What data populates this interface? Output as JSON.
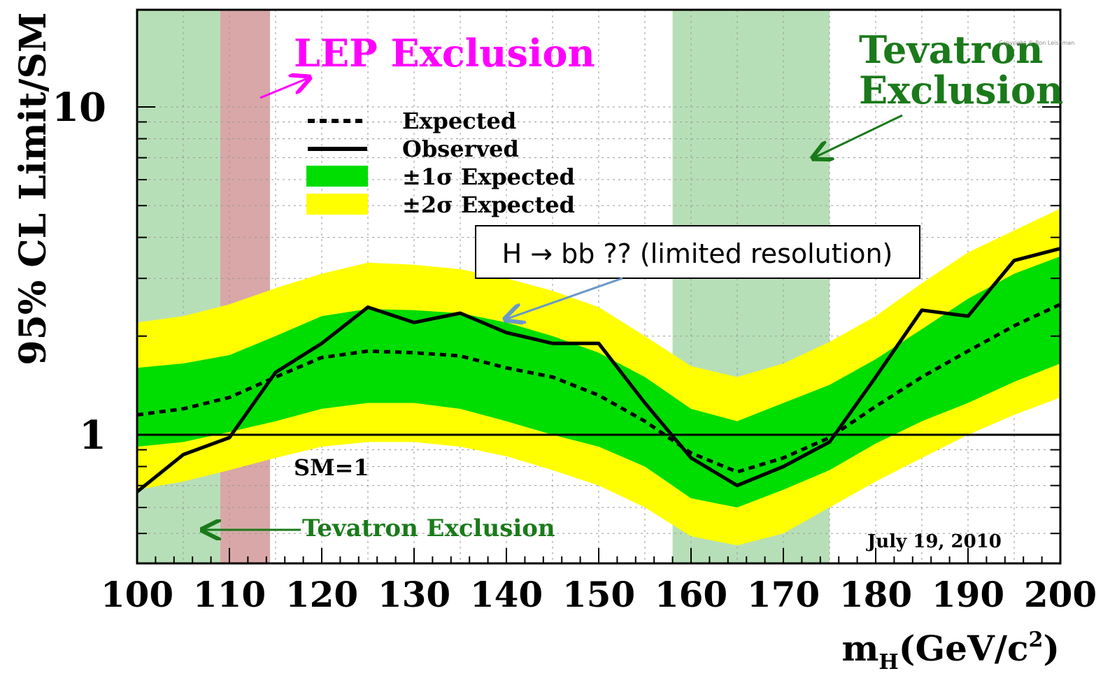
{
  "chart_data": {
    "type": "line",
    "xlabel": "m",
    "xlabel_sub": "H",
    "xlabel_unit": "(GeV/c",
    "xlabel_unit_sup": "2",
    "xlabel_unit_close": ")",
    "ylabel": "95% CL Limit/SM",
    "xlim": [
      100,
      200
    ],
    "ylim": [
      0.45,
      20
    ],
    "yscale": "log",
    "grid": true,
    "x_ticks": [
      100,
      110,
      120,
      130,
      140,
      150,
      160,
      170,
      180,
      190,
      200
    ],
    "y_ticks": [
      1,
      10
    ],
    "x": [
      100,
      105,
      110,
      115,
      120,
      125,
      130,
      135,
      140,
      145,
      150,
      155,
      160,
      165,
      170,
      175,
      180,
      185,
      190,
      195,
      200
    ],
    "series": [
      {
        "name": "Expected",
        "style": "dotted",
        "color": "#000000",
        "values": [
          1.15,
          1.2,
          1.3,
          1.5,
          1.72,
          1.8,
          1.78,
          1.74,
          1.6,
          1.5,
          1.32,
          1.1,
          0.88,
          0.77,
          0.85,
          0.98,
          1.22,
          1.5,
          1.8,
          2.15,
          2.5
        ]
      },
      {
        "name": "Observed",
        "style": "solid",
        "color": "#000000",
        "values": [
          0.67,
          0.87,
          0.98,
          1.55,
          1.9,
          2.45,
          2.2,
          2.35,
          2.05,
          1.9,
          1.9,
          1.25,
          0.85,
          0.7,
          0.8,
          0.95,
          1.5,
          2.4,
          2.3,
          3.4,
          3.7
        ]
      },
      {
        "name": "±1σ Expected",
        "style": "band",
        "color": "#00dd00",
        "lower": [
          0.92,
          0.95,
          1.02,
          1.1,
          1.2,
          1.25,
          1.25,
          1.2,
          1.1,
          1.0,
          0.92,
          0.8,
          0.64,
          0.6,
          0.68,
          0.78,
          0.94,
          1.1,
          1.25,
          1.45,
          1.65
        ],
        "upper": [
          1.6,
          1.65,
          1.75,
          2.0,
          2.3,
          2.42,
          2.4,
          2.35,
          2.2,
          2.0,
          1.78,
          1.5,
          1.2,
          1.1,
          1.25,
          1.42,
          1.7,
          2.1,
          2.6,
          3.1,
          3.5
        ]
      },
      {
        "name": "±2σ Expected",
        "style": "band",
        "color": "#ffff00",
        "lower": [
          0.68,
          0.72,
          0.78,
          0.85,
          0.92,
          0.95,
          0.95,
          0.92,
          0.86,
          0.78,
          0.7,
          0.6,
          0.49,
          0.46,
          0.5,
          0.6,
          0.72,
          0.85,
          1.0,
          1.15,
          1.3
        ],
        "upper": [
          2.2,
          2.3,
          2.5,
          2.8,
          3.1,
          3.35,
          3.3,
          3.2,
          3.0,
          2.75,
          2.45,
          2.0,
          1.62,
          1.5,
          1.65,
          1.92,
          2.3,
          2.9,
          3.6,
          4.2,
          4.9
        ]
      }
    ],
    "exclusion_regions": [
      {
        "label": "Tevatron Exclusion",
        "x0": 100,
        "x1": 109,
        "color": "#b7dfb7"
      },
      {
        "label": "LEP Exclusion",
        "x0": 109,
        "x1": 114.4,
        "color": "#d9a7a7"
      },
      {
        "label": "Tevatron Exclusion",
        "x0": 158,
        "x1": 175,
        "color": "#b7dfb7"
      }
    ],
    "reference_line": {
      "label": "SM=1",
      "y": 1
    },
    "legend": [
      "Expected",
      "Observed",
      "±1σ Expected",
      "±2σ Expected"
    ],
    "legend_position": "top-left"
  },
  "annotations": {
    "lep": "LEP Exclusion",
    "tevatron_top_line1": "Tevatron",
    "tevatron_top_line2": "Exclusion",
    "tevatron_bottom": "Tevatron Exclusion",
    "sm": "SM=1",
    "date": "July 19, 2010",
    "callout": "H → bb ?? (limited resolution)",
    "copyright": "Copyright © Ron Leishman"
  },
  "colors": {
    "lep": "#ff00ff",
    "tevatron": "#1a7a1a",
    "callout_arrow": "#6a98c8"
  }
}
